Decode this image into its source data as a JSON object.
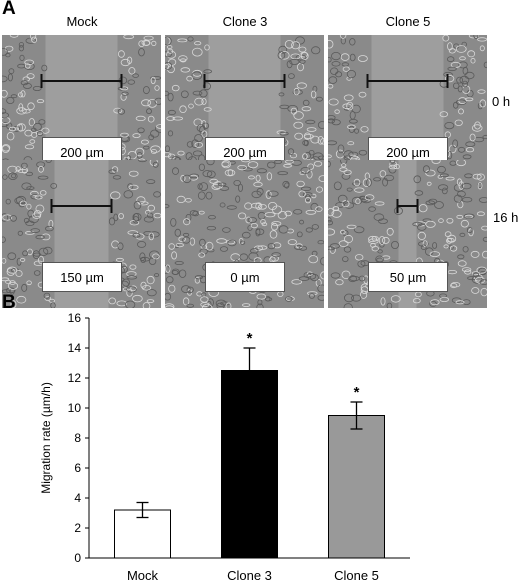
{
  "panel_a": {
    "letter": "A",
    "columns": [
      "Mock",
      "Clone 3",
      "Clone 5"
    ],
    "rows": [
      {
        "label": "0 h",
        "distances": [
          "200 µm",
          "200 µm",
          "200 µm"
        ],
        "gap_um": [
          200,
          200,
          200
        ]
      },
      {
        "label": "16 h",
        "distances": [
          "150 µm",
          "0 µm",
          "50 µm"
        ],
        "gap_um": [
          150,
          0,
          50
        ]
      }
    ],
    "colors": {
      "cell_background": "#8a8a8a",
      "wound_gap": "#9e9e9e",
      "cells": "#5a5a5a"
    }
  },
  "panel_b": {
    "letter": "B",
    "significance_mark": "*"
  },
  "chart_data": {
    "type": "bar",
    "categories": [
      "Mock",
      "Clone 3",
      "Clone 5"
    ],
    "values": [
      3.2,
      12.5,
      9.5
    ],
    "errors": [
      0.5,
      1.5,
      0.9
    ],
    "significant": [
      false,
      true,
      true
    ],
    "bar_colors": [
      "#ffffff",
      "#000000",
      "#999999"
    ],
    "title": "",
    "xlabel": "",
    "ylabel": "Migration rate (µm/h)",
    "ylim": [
      0,
      16
    ],
    "yticks": [
      0,
      2,
      4,
      6,
      8,
      10,
      12,
      14,
      16
    ],
    "grid": false,
    "legend": "none"
  }
}
